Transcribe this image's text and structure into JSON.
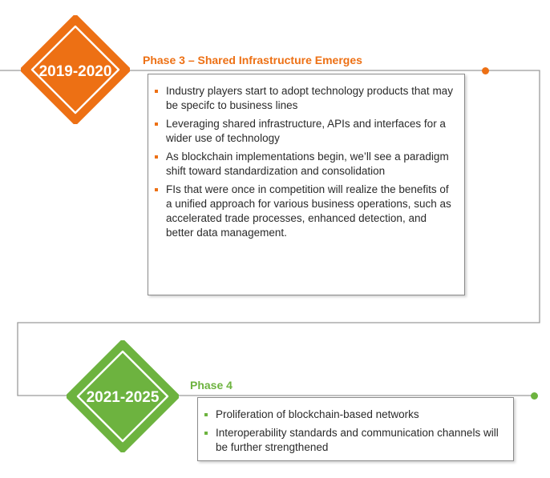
{
  "phases": [
    {
      "year": "2019-2020",
      "title": "Phase 3 – Shared Infrastructure Emerges",
      "color": "#ed7014",
      "bullets": [
        "Industry players start to adopt technology products that may be specifc to business lines",
        "Leveraging shared infrastructure, APIs and interfaces for a wider use of technology",
        "As blockchain implementations begin, we’ll see a paradigm shift toward standardization and consolidation",
        "FIs that were once in competition will realize the benefits of a unified approach for various business operations, such as accelerated trade processes, enhanced detection, and better data management."
      ]
    },
    {
      "year": "2021-2025",
      "title": "Phase 4",
      "color": "#6db33f",
      "bullets": [
        "Proliferation of blockchain-based networks",
        "Interoperability standards and communication channels will be further strengthened"
      ]
    }
  ],
  "colors": {
    "line": "#9a9a9a",
    "text": "#2a2a2a",
    "box_border": "#8a8a8a"
  }
}
